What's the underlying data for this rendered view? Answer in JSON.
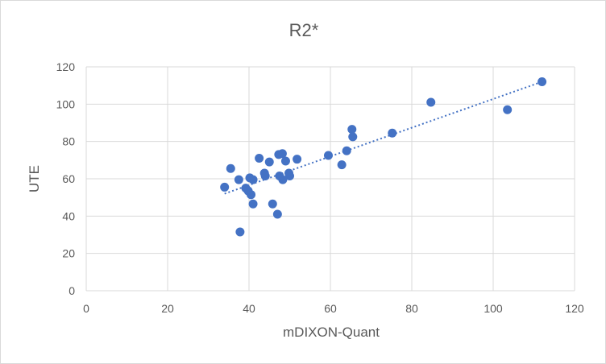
{
  "chart_data": {
    "type": "scatter",
    "title": "R2*",
    "xlabel": "mDIXON-Quant",
    "ylabel": "UTE",
    "xlim": [
      0,
      120
    ],
    "ylim": [
      0,
      120
    ],
    "xticks": [
      0,
      20,
      40,
      60,
      80,
      100,
      120
    ],
    "yticks": [
      0,
      20,
      40,
      60,
      80,
      100,
      120
    ],
    "grid": true,
    "legend": "none",
    "marker_color": "#4472C4",
    "trendline": {
      "type": "linear",
      "style": "dotted",
      "x_start": 34,
      "y_start": 52,
      "x_end": 112,
      "y_end": 112
    },
    "series": [
      {
        "name": "R2*",
        "points": [
          {
            "x": 34,
            "y": 55.5
          },
          {
            "x": 35.5,
            "y": 65.5
          },
          {
            "x": 37.5,
            "y": 59.5
          },
          {
            "x": 37.8,
            "y": 31.5
          },
          {
            "x": 39.2,
            "y": 55
          },
          {
            "x": 39.8,
            "y": 53.5
          },
          {
            "x": 40.2,
            "y": 60.5
          },
          {
            "x": 40.5,
            "y": 51.5
          },
          {
            "x": 41,
            "y": 59.5
          },
          {
            "x": 41,
            "y": 46.5
          },
          {
            "x": 42.5,
            "y": 71
          },
          {
            "x": 43.8,
            "y": 63
          },
          {
            "x": 44,
            "y": 61.5
          },
          {
            "x": 45,
            "y": 69
          },
          {
            "x": 45.8,
            "y": 46.5
          },
          {
            "x": 47,
            "y": 41
          },
          {
            "x": 47.3,
            "y": 73
          },
          {
            "x": 47.5,
            "y": 61.5
          },
          {
            "x": 48.2,
            "y": 73.5
          },
          {
            "x": 48.3,
            "y": 59.5
          },
          {
            "x": 49,
            "y": 69.5
          },
          {
            "x": 49.8,
            "y": 63
          },
          {
            "x": 50,
            "y": 61.5
          },
          {
            "x": 51.8,
            "y": 70.5
          },
          {
            "x": 59.5,
            "y": 72.5
          },
          {
            "x": 62.8,
            "y": 67.5
          },
          {
            "x": 64,
            "y": 75
          },
          {
            "x": 65.3,
            "y": 86.5
          },
          {
            "x": 65.5,
            "y": 82.5
          },
          {
            "x": 75.2,
            "y": 84.5
          },
          {
            "x": 84.7,
            "y": 101
          },
          {
            "x": 103.5,
            "y": 97
          },
          {
            "x": 112,
            "y": 112
          }
        ]
      }
    ]
  }
}
